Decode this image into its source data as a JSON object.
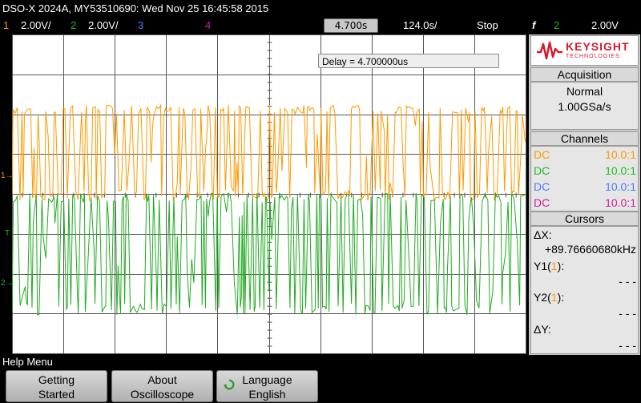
{
  "header": {
    "title": "DSO-X 2024A, MY53510690: Wed Nov 25 16:45:58 2015"
  },
  "channels_bar": {
    "ch1_num": "1",
    "ch1_scale": "2.00V/",
    "ch2_num": "2",
    "ch2_scale": "2.00V/",
    "ch3_num": "3",
    "ch4_num": "4",
    "time_per_div": "4.700s",
    "time_delay": "124.0s/",
    "run_state": "Stop",
    "trigger_symbol": "f",
    "trigger_channel": "2",
    "trigger_level": "2.00V"
  },
  "screen": {
    "delay_readout": "Delay = 4.700000us",
    "ch1_marker": "1",
    "ch2_marker": "2",
    "trigger_marker": "T"
  },
  "logo": {
    "brand": "KEYSIGHT",
    "sub": "TECHNOLOGIES"
  },
  "acquisition": {
    "title": "Acquisition",
    "mode": "Normal",
    "rate": "1.00GSa/s"
  },
  "channels": {
    "title": "Channels",
    "rows": [
      {
        "coupling": "DC",
        "probe": "10.0:1",
        "color": "#ff9900"
      },
      {
        "coupling": "DC",
        "probe": "10.0:1",
        "color": "#22bb22"
      },
      {
        "coupling": "DC",
        "probe": "10.0:1",
        "color": "#5577ff"
      },
      {
        "coupling": "DC",
        "probe": "10.0:1",
        "color": "#cc2299"
      }
    ]
  },
  "cursors": {
    "title": "Cursors",
    "dx_label": "ΔX:",
    "dx_value": "+89.76660680kHz",
    "y1_label_pre": "Y1(",
    "y1_label_num": "1",
    "y1_label_post": "):",
    "y1_value": "- - -",
    "y2_label_pre": "Y2(",
    "y2_label_num": "1",
    "y2_label_post": "):",
    "y2_value": "- - -",
    "dy_label": "ΔY:",
    "dy_value": "- - -"
  },
  "softkeys": {
    "menu_title": "Help Menu",
    "k1_line1": "Getting",
    "k1_line2": "Started",
    "k2_line1": "About",
    "k2_line2": "Oscilloscope",
    "k3_line1": "Language",
    "k3_line2": "English"
  },
  "colors": {
    "ch1": "#ff9900",
    "ch2": "#22aa22",
    "ch3": "#5577ff",
    "ch4": "#cc2299"
  }
}
